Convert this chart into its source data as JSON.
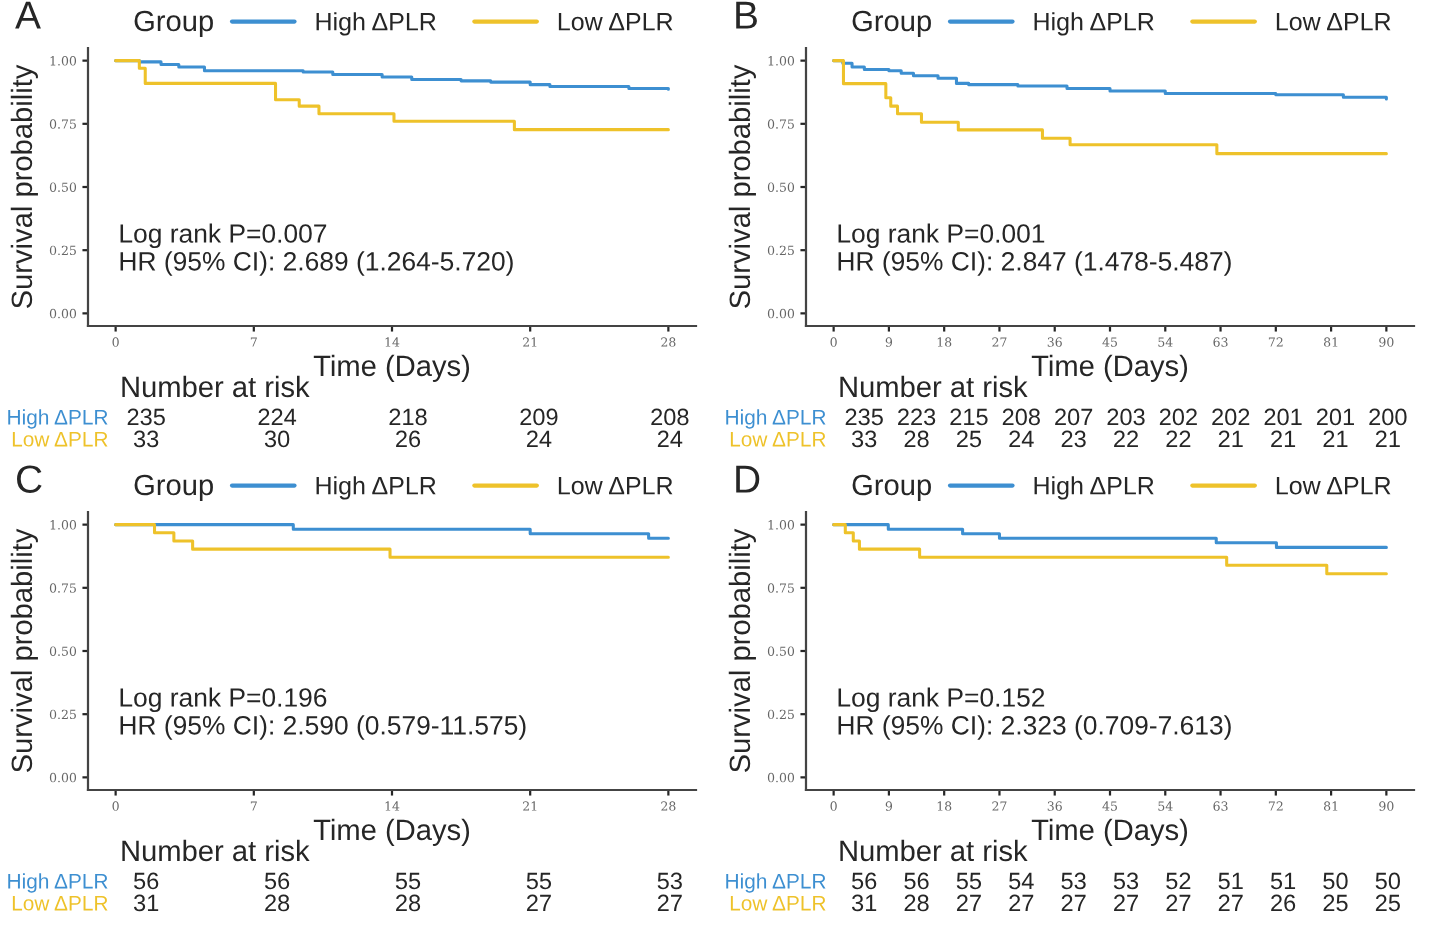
{
  "chart_data": [
    {
      "type": "step",
      "title": "A",
      "xlabel": "Time (Days)",
      "ylabel": "Survival probability",
      "legend_title": "Group",
      "legend": "top",
      "grid": false,
      "xlim": [
        -1.4,
        29.4
      ],
      "xticks": [
        0,
        7,
        14,
        21,
        28
      ],
      "ylim": [
        -0.05,
        1.05
      ],
      "yticks": [
        {
          "value": 0,
          "label": "0.00"
        },
        {
          "value": 0.25,
          "label": "0.25"
        },
        {
          "value": 0.5,
          "label": "0.50"
        },
        {
          "value": 0.75,
          "label": "0.75"
        },
        {
          "value": 1,
          "label": "1.00"
        }
      ],
      "annotations": [
        "Log rank P=0.007",
        "HR (95% CI): 2.689 (1.264-5.720)"
      ],
      "series": [
        {
          "name": "High ΔPLR",
          "color": "#3d8fd1",
          "x": [
            0,
            1.2,
            2.3,
            3.2,
            4.5,
            9.5,
            11,
            13.5,
            15,
            17.5,
            19,
            21,
            22,
            26,
            28
          ],
          "values": [
            1,
            0.995,
            0.985,
            0.975,
            0.96,
            0.955,
            0.945,
            0.935,
            0.925,
            0.92,
            0.915,
            0.905,
            0.898,
            0.89,
            0.887
          ]
        },
        {
          "name": "Low ΔPLR",
          "color": "#eec22a",
          "x": [
            0,
            1.2,
            1.5,
            8.1,
            9.3,
            10.3,
            14.1,
            20.2,
            28
          ],
          "values": [
            1,
            0.97,
            0.91,
            0.845,
            0.82,
            0.79,
            0.76,
            0.727,
            0.727
          ]
        }
      ]
    },
    {
      "type": "other",
      "title": "Number at risk",
      "colors": [
        "#3d8fd1",
        "#eec22a"
      ],
      "annotations": [
        "High ΔPLR",
        "235",
        "224",
        "218",
        "209",
        "208",
        "Low ΔPLR",
        "33",
        "30",
        "26",
        "24",
        "24"
      ]
    },
    {
      "type": "step",
      "title": "B",
      "xlabel": "Time (Days)",
      "ylabel": "Survival probability",
      "legend_title": "Group",
      "legend": "top",
      "grid": false,
      "xlim": [
        -4.5,
        94.5
      ],
      "xticks": [
        0,
        9,
        18,
        27,
        36,
        45,
        54,
        63,
        72,
        81,
        90
      ],
      "ylim": [
        -0.05,
        1.05
      ],
      "yticks": [
        {
          "value": 0,
          "label": "0.00"
        },
        {
          "value": 0.25,
          "label": "0.25"
        },
        {
          "value": 0.5,
          "label": "0.50"
        },
        {
          "value": 0.75,
          "label": "0.75"
        },
        {
          "value": 1,
          "label": "1.00"
        }
      ],
      "annotations": [
        "Log rank P=0.001",
        "HR (95% CI): 2.847 (1.478-5.487)"
      ],
      "series": [
        {
          "name": "High ΔPLR",
          "color": "#3d8fd1",
          "x": [
            0,
            1.5,
            3,
            5,
            9,
            11,
            13,
            17,
            20,
            22,
            30,
            38,
            45,
            54,
            72,
            83,
            90
          ],
          "values": [
            1,
            0.99,
            0.975,
            0.965,
            0.96,
            0.95,
            0.94,
            0.93,
            0.91,
            0.905,
            0.9,
            0.89,
            0.88,
            0.87,
            0.865,
            0.855,
            0.848
          ]
        },
        {
          "name": "Low ΔPLR",
          "color": "#eec22a",
          "x": [
            0,
            1.6,
            8.5,
            9.3,
            10.4,
            14.3,
            20.3,
            34,
            38.5,
            62.4,
            90
          ],
          "values": [
            1,
            0.909,
            0.853,
            0.82,
            0.79,
            0.756,
            0.726,
            0.693,
            0.667,
            0.632,
            0.632
          ]
        }
      ]
    },
    {
      "type": "other",
      "title": "Number at risk",
      "colors": [
        "#3d8fd1",
        "#eec22a"
      ],
      "annotations": [
        "High ΔPLR",
        "235",
        "223",
        "215",
        "208",
        "207",
        "203",
        "202",
        "202",
        "201",
        "201",
        "200",
        "Low ΔPLR",
        "33",
        "28",
        "25",
        "24",
        "23",
        "22",
        "22",
        "21",
        "21",
        "21",
        "21"
      ]
    },
    {
      "type": "step",
      "title": "C",
      "xlabel": "Time (Days)",
      "ylabel": "Survival probability",
      "legend_title": "Group",
      "legend": "top",
      "grid": false,
      "xlim": [
        -1.4,
        29.4
      ],
      "xticks": [
        0,
        7,
        14,
        21,
        28
      ],
      "ylim": [
        -0.05,
        1.05
      ],
      "yticks": [
        {
          "value": 0,
          "label": "0.00"
        },
        {
          "value": 0.25,
          "label": "0.25"
        },
        {
          "value": 0.5,
          "label": "0.50"
        },
        {
          "value": 0.75,
          "label": "0.75"
        },
        {
          "value": 1,
          "label": "1.00"
        }
      ],
      "annotations": [
        "Log rank P=0.196",
        "HR (95% CI): 2.590 (0.579-11.575)"
      ],
      "series": [
        {
          "name": "High ΔPLR",
          "color": "#3d8fd1",
          "x": [
            0,
            9,
            21,
            27,
            28
          ],
          "values": [
            1,
            0.982,
            0.964,
            0.946,
            0.946
          ]
        },
        {
          "name": "Low ΔPLR",
          "color": "#eec22a",
          "x": [
            0,
            1.97,
            2.95,
            3.9,
            13.9,
            28
          ],
          "values": [
            1,
            0.968,
            0.935,
            0.903,
            0.871,
            0.871
          ]
        }
      ]
    },
    {
      "type": "other",
      "title": "Number at risk",
      "colors": [
        "#3d8fd1",
        "#eec22a"
      ],
      "annotations": [
        "High ΔPLR",
        "56",
        "56",
        "55",
        "55",
        "53",
        "Low ΔPLR",
        "31",
        "28",
        "28",
        "27",
        "27"
      ]
    },
    {
      "type": "step",
      "title": "D",
      "xlabel": "Time (Days)",
      "ylabel": "Survival probability",
      "legend_title": "Group",
      "legend": "top",
      "grid": false,
      "xlim": [
        -4.5,
        94.5
      ],
      "xticks": [
        0,
        9,
        18,
        27,
        36,
        45,
        54,
        63,
        72,
        81,
        90
      ],
      "ylim": [
        -0.05,
        1.05
      ],
      "yticks": [
        {
          "value": 0,
          "label": "0.00"
        },
        {
          "value": 0.25,
          "label": "0.25"
        },
        {
          "value": 0.5,
          "label": "0.50"
        },
        {
          "value": 0.75,
          "label": "0.75"
        },
        {
          "value": 1,
          "label": "1.00"
        }
      ],
      "annotations": [
        "Log rank P=0.152",
        "HR (95% CI): 2.323 (0.709-7.613)"
      ],
      "series": [
        {
          "name": "High ΔPLR",
          "color": "#3d8fd1",
          "x": [
            0,
            8.9,
            21,
            27,
            62.3,
            72.1,
            90
          ],
          "values": [
            1,
            0.982,
            0.964,
            0.946,
            0.928,
            0.91,
            0.91
          ]
        },
        {
          "name": "Low ΔPLR",
          "color": "#eec22a",
          "x": [
            0,
            1.9,
            3.2,
            4.2,
            14,
            64,
            80.3,
            90
          ],
          "values": [
            1,
            0.968,
            0.935,
            0.903,
            0.871,
            0.839,
            0.806,
            0.806
          ]
        }
      ]
    },
    {
      "type": "other",
      "title": "Number at risk",
      "colors": [
        "#3d8fd1",
        "#eec22a"
      ],
      "annotations": [
        "High ΔPLR",
        "56",
        "56",
        "55",
        "54",
        "53",
        "53",
        "52",
        "51",
        "51",
        "50",
        "50",
        "Low ΔPLR",
        "31",
        "28",
        "27",
        "27",
        "27",
        "27",
        "27",
        "27",
        "26",
        "25",
        "25"
      ]
    }
  ]
}
